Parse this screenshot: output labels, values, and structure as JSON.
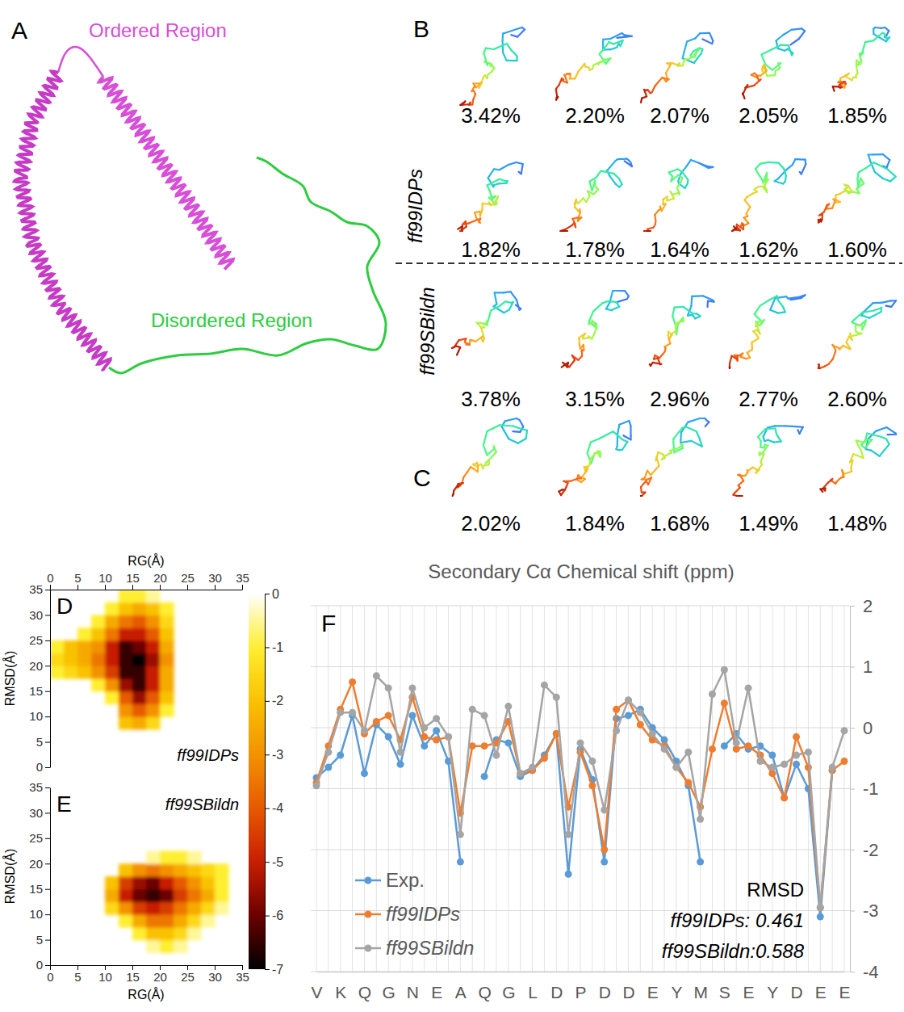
{
  "figure": {
    "A": {
      "panel_label": "A",
      "ordered_label": "Ordered Region",
      "disordered_label": "Disordered Region"
    },
    "B": {
      "panel_label": "B",
      "force_field": "ff99IDPs",
      "populations": [
        "3.42%",
        "2.20%",
        "2.07%",
        "2.05%",
        "1.85%",
        "1.82%",
        "1.78%",
        "1.64%",
        "1.62%",
        "1.60%"
      ]
    },
    "C": {
      "panel_label": "C",
      "force_field": "ff99SBildn",
      "populations": [
        "3.78%",
        "3.15%",
        "2.96%",
        "2.77%",
        "2.60%",
        "2.02%",
        "1.84%",
        "1.68%",
        "1.49%",
        "1.48%"
      ]
    }
  },
  "chart_data": [
    {
      "type": "heatmap",
      "panel_label": "D",
      "label": "ff99IDPs",
      "xlabel": "RG(Å)",
      "ylabel": "RMSD(Å)",
      "xlim": [
        0,
        35
      ],
      "ylim": [
        0,
        35
      ],
      "xticks": [
        0,
        5,
        10,
        15,
        20,
        25,
        30,
        35
      ],
      "yticks": [
        0,
        5,
        10,
        15,
        20,
        25,
        30,
        35
      ],
      "x_edges": [
        0,
        2.5,
        5,
        7.5,
        10,
        12.5,
        15,
        17.5,
        20,
        22.5,
        25,
        27.5,
        30,
        32.5,
        35
      ],
      "y_edges": [
        0,
        2.5,
        5,
        7.5,
        10,
        12.5,
        15,
        17.5,
        20,
        22.5,
        25,
        27.5,
        30,
        32.5,
        35
      ],
      "cells": [
        [
          null,
          null,
          null,
          null,
          null,
          null,
          null,
          null,
          null,
          null,
          null,
          null,
          null,
          null
        ],
        [
          null,
          null,
          null,
          null,
          null,
          null,
          null,
          null,
          null,
          null,
          null,
          null,
          null,
          null
        ],
        [
          null,
          null,
          null,
          null,
          null,
          null,
          null,
          null,
          null,
          null,
          null,
          null,
          null,
          null
        ],
        [
          null,
          null,
          null,
          null,
          null,
          -2,
          -2.5,
          -1.5,
          null,
          null,
          null,
          null,
          null,
          null
        ],
        [
          null,
          null,
          null,
          null,
          null,
          -3,
          -4,
          -3,
          -1,
          null,
          null,
          null,
          null,
          null
        ],
        [
          null,
          null,
          null,
          null,
          -1,
          -4,
          -5.5,
          -4,
          -2,
          null,
          null,
          null,
          null,
          null
        ],
        [
          null,
          null,
          null,
          -1,
          -3,
          -5.5,
          -6.5,
          -5,
          -2.5,
          null,
          null,
          null,
          null,
          null
        ],
        [
          -1,
          -1.5,
          -2,
          -3,
          -4.5,
          -6.5,
          -6.5,
          -5,
          -2.5,
          null,
          null,
          null,
          null,
          null
        ],
        [
          -1.5,
          -2,
          -2.5,
          -3.5,
          -5,
          -6.5,
          -7,
          -5.5,
          -3,
          null,
          null,
          null,
          null,
          null
        ],
        [
          -1,
          -2,
          -2.5,
          -3,
          -5,
          -6.5,
          -6,
          -5,
          -2.5,
          null,
          null,
          null,
          null,
          null
        ],
        [
          null,
          null,
          -1,
          -2,
          -3.5,
          -5,
          -5,
          -4,
          -2,
          null,
          null,
          null,
          null,
          null
        ],
        [
          null,
          null,
          null,
          -1,
          -2.5,
          -3.5,
          -4,
          -3,
          -1.5,
          null,
          null,
          null,
          null,
          null
        ],
        [
          null,
          null,
          null,
          null,
          -1,
          -2,
          -2.5,
          -2,
          -1,
          null,
          null,
          null,
          null,
          null
        ],
        [
          null,
          null,
          null,
          null,
          null,
          -1,
          -1,
          -0.5,
          null,
          null,
          null,
          null,
          null,
          null
        ]
      ],
      "colorbar_range": [
        -7,
        0
      ],
      "colorbar_ticks": [
        0,
        -1,
        -2,
        -3,
        -4,
        -5,
        -6,
        -7
      ]
    },
    {
      "type": "heatmap",
      "panel_label": "E",
      "label": "ff99SBildn",
      "xlabel": "RG(Å)",
      "ylabel": "RMSD(Å)",
      "xlim": [
        0,
        35
      ],
      "ylim": [
        0,
        35
      ],
      "xticks": [
        0,
        5,
        10,
        15,
        20,
        25,
        30,
        35
      ],
      "yticks": [
        0,
        5,
        10,
        15,
        20,
        25,
        30,
        35
      ],
      "x_edges": [
        0,
        2.5,
        5,
        7.5,
        10,
        12.5,
        15,
        17.5,
        20,
        22.5,
        25,
        27.5,
        30,
        32.5,
        35
      ],
      "y_edges": [
        0,
        2.5,
        5,
        7.5,
        10,
        12.5,
        15,
        17.5,
        20,
        22.5,
        25,
        27.5,
        30,
        32.5,
        35
      ],
      "cells": [
        [
          null,
          null,
          null,
          null,
          null,
          null,
          null,
          null,
          null,
          null,
          null,
          null,
          null,
          null
        ],
        [
          null,
          null,
          null,
          null,
          null,
          null,
          null,
          -0.5,
          -1,
          -0.5,
          null,
          null,
          null,
          null
        ],
        [
          null,
          null,
          null,
          null,
          null,
          null,
          -1,
          -2,
          -2,
          -1.5,
          -0.5,
          null,
          null,
          null
        ],
        [
          null,
          null,
          null,
          null,
          null,
          -1,
          -2.5,
          -3.5,
          -3.5,
          -2.5,
          -1.5,
          -0.5,
          null,
          null
        ],
        [
          null,
          null,
          null,
          null,
          -1.5,
          -3,
          -4.5,
          -5,
          -4.5,
          -3.5,
          -2.5,
          -1.5,
          -0.5,
          null
        ],
        [
          null,
          null,
          null,
          null,
          -2.5,
          -5,
          -6,
          -6.5,
          -6,
          -4.5,
          -3.5,
          -2.5,
          -1,
          null
        ],
        [
          null,
          null,
          null,
          null,
          -2,
          -4.5,
          -5.5,
          -6,
          -5,
          -4,
          -3,
          -2,
          -1,
          null
        ],
        [
          null,
          null,
          null,
          null,
          null,
          -2,
          -3,
          -3.5,
          -3,
          -2.5,
          -2,
          -1.5,
          -1,
          null
        ],
        [
          null,
          null,
          null,
          null,
          null,
          null,
          null,
          -0.5,
          -1,
          -1,
          -0.5,
          null,
          null,
          null
        ],
        [
          null,
          null,
          null,
          null,
          null,
          null,
          null,
          null,
          null,
          null,
          null,
          null,
          null,
          null
        ],
        [
          null,
          null,
          null,
          null,
          null,
          null,
          null,
          null,
          null,
          null,
          null,
          null,
          null,
          null
        ],
        [
          null,
          null,
          null,
          null,
          null,
          null,
          null,
          null,
          null,
          null,
          null,
          null,
          null,
          null
        ],
        [
          null,
          null,
          null,
          null,
          null,
          null,
          null,
          null,
          null,
          null,
          null,
          null,
          null,
          null
        ],
        [
          null,
          null,
          null,
          null,
          null,
          null,
          null,
          null,
          null,
          null,
          null,
          null,
          null,
          null
        ]
      ]
    },
    {
      "type": "line",
      "panel_label": "F",
      "title": "Secondary Cα Chemical shift (ppm)",
      "categories": [
        "V",
        null,
        "K",
        null,
        "Q",
        null,
        "G",
        null,
        "N",
        null,
        "E",
        null,
        "A",
        null,
        "Q",
        null,
        "G",
        null,
        "L",
        null,
        "D",
        null,
        "P",
        null,
        "D",
        null,
        "D",
        null,
        "E",
        null,
        "Y",
        null,
        "M",
        null,
        "S",
        null,
        "E",
        null,
        "Y",
        null,
        "D",
        null,
        "E",
        null,
        "E"
      ],
      "series": [
        {
          "name": "Exp.",
          "color": "#5b9bd5",
          "marker": "circle",
          "values": [
            -0.82,
            -0.65,
            -0.45,
            0.2,
            -0.75,
            0.05,
            -0.15,
            -0.6,
            0.2,
            -0.3,
            -0.05,
            -0.55,
            -2.2,
            null,
            -0.8,
            -0.2,
            -0.25,
            -0.8,
            -0.7,
            -0.45,
            -0.1,
            -2.4,
            -0.35,
            -0.85,
            -2.2,
            0.15,
            0.2,
            0.3,
            0,
            -0.2,
            -0.55,
            -0.95,
            -2.2,
            null,
            -0.3,
            -0.1,
            -0.35,
            -0.3,
            -0.45,
            -1.15,
            -0.6,
            -1.0,
            -3.1,
            -0.7,
            null
          ]
        },
        {
          "name": "ff99IDPs",
          "color": "#ed7d31",
          "marker": "circle",
          "values": [
            -0.9,
            -0.3,
            0.3,
            0.75,
            -0.1,
            0.1,
            0.2,
            -0.2,
            0.5,
            -0.15,
            -0.2,
            -0.15,
            -1.4,
            -0.3,
            -0.3,
            -0.25,
            0.1,
            -0.75,
            -0.7,
            -0.5,
            -0.1,
            -1.3,
            -0.4,
            -0.95,
            -2.0,
            0.3,
            0.45,
            0.05,
            -0.2,
            -0.3,
            -0.65,
            -0.9,
            -1.3,
            -0.35,
            0.4,
            -0.35,
            -0.3,
            -0.45,
            -0.75,
            -1.15,
            -0.15,
            -0.65,
            -2.95,
            -0.7,
            -0.55
          ]
        },
        {
          "name": "ff99SBildn",
          "color": "#a5a5a5",
          "marker": "circle",
          "values": [
            -0.95,
            -0.4,
            0.25,
            0.25,
            -0.05,
            0.85,
            0.65,
            -0.4,
            0.65,
            0,
            0.15,
            -0.15,
            -1.75,
            0.3,
            0.2,
            -0.45,
            0.35,
            -0.75,
            -0.65,
            0.7,
            0.5,
            -1.75,
            -0.25,
            -0.55,
            -1.35,
            -0.05,
            0.45,
            0.25,
            -0.1,
            -0.35,
            -0.65,
            -0.4,
            -1.5,
            0.55,
            0.95,
            -0.25,
            0.65,
            -0.55,
            -0.65,
            -0.6,
            -0.45,
            -0.4,
            -2.95,
            -0.65,
            -0.05
          ]
        }
      ],
      "ylim": [
        -4,
        2
      ],
      "yticks": [
        2,
        1,
        0,
        -1,
        -2,
        -3,
        -4
      ],
      "grid": true,
      "legend": "lower left",
      "annotations": [
        "RMSD",
        "ff99IDPs: 0.461",
        "ff99SBildn:0.588"
      ]
    }
  ]
}
